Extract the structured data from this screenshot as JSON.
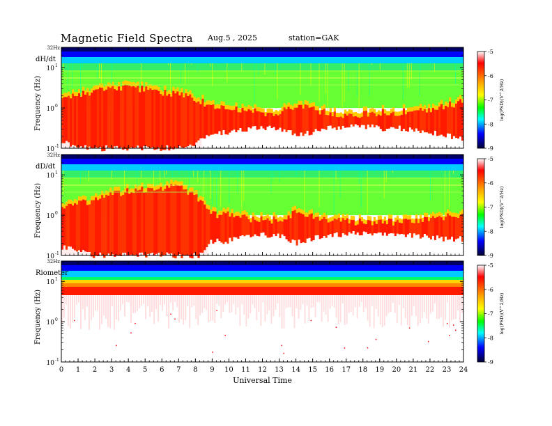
{
  "header": {
    "title": "Magnetic  Field  Spectra",
    "date": "Aug.5  , 2025",
    "station": "station=GAK"
  },
  "chart_data": [
    {
      "type": "heatmap",
      "panel_label": "dH/dt",
      "ylabel": "Frequency  (Hz)",
      "y_scale": "log",
      "ylim": [
        0.1,
        32
      ],
      "y_ticks": [
        {
          "value": 32,
          "label": "32Hz"
        },
        {
          "value": 10,
          "label": "10",
          "exp": "1"
        },
        {
          "value": 1,
          "label": "10",
          "exp": "0"
        },
        {
          "value": 0.1,
          "label": "10",
          "exp": "-1"
        }
      ],
      "xlim": [
        0,
        24
      ],
      "colorbar": {
        "label": "log(PSD)(V^2/Hz)",
        "range": [
          -9,
          -5
        ],
        "ticks": [
          "-5",
          "-6",
          "-7",
          "-8",
          "-9"
        ]
      },
      "profile": [
        [
          0,
          0.55
        ],
        [
          1,
          0.7
        ],
        [
          2,
          0.8
        ],
        [
          3,
          0.9
        ],
        [
          4,
          0.9
        ],
        [
          5,
          0.85
        ],
        [
          6,
          0.75
        ],
        [
          7,
          0.7
        ],
        [
          8,
          0.6
        ],
        [
          9,
          0.35
        ],
        [
          10,
          0.3
        ],
        [
          11,
          0.25
        ],
        [
          12,
          0.2
        ],
        [
          13,
          0.2
        ],
        [
          14,
          0.4
        ],
        [
          15,
          0.3
        ],
        [
          16,
          0.2
        ],
        [
          17,
          0.15
        ],
        [
          18,
          0.15
        ],
        [
          19,
          0.2
        ],
        [
          20,
          0.2
        ],
        [
          21,
          0.25
        ],
        [
          22,
          0.3
        ],
        [
          23,
          0.4
        ],
        [
          24,
          0.5
        ]
      ]
    },
    {
      "type": "heatmap",
      "panel_label": "dD/dt",
      "ylabel": "Frequency  (Hz)",
      "y_scale": "log",
      "ylim": [
        0.1,
        32
      ],
      "y_ticks": [
        {
          "value": 32,
          "label": "32Hz"
        },
        {
          "value": 10,
          "label": "10",
          "exp": "1"
        },
        {
          "value": 1,
          "label": "10",
          "exp": "0"
        },
        {
          "value": 0.1,
          "label": "10",
          "exp": "-1"
        }
      ],
      "xlim": [
        0,
        24
      ],
      "colorbar": {
        "label": "log(PSD)(V^2/Hz)",
        "range": [
          -9,
          -5
        ],
        "ticks": [
          "-5",
          "-6",
          "-7",
          "-8",
          "-9"
        ]
      },
      "profile": [
        [
          0,
          0.5
        ],
        [
          1,
          0.65
        ],
        [
          2,
          0.75
        ],
        [
          3,
          0.9
        ],
        [
          4,
          1.0
        ],
        [
          5,
          1.05
        ],
        [
          6,
          1.1
        ],
        [
          7,
          1.1
        ],
        [
          8,
          0.9
        ],
        [
          9,
          0.35
        ],
        [
          10,
          0.35
        ],
        [
          11,
          0.25
        ],
        [
          12,
          0.2
        ],
        [
          13,
          0.2
        ],
        [
          14,
          0.4
        ],
        [
          15,
          0.3
        ],
        [
          16,
          0.2
        ],
        [
          17,
          0.15
        ],
        [
          18,
          0.15
        ],
        [
          19,
          0.15
        ],
        [
          20,
          0.15
        ],
        [
          21,
          0.2
        ],
        [
          22,
          0.25
        ],
        [
          23,
          0.3
        ],
        [
          24,
          0.3
        ]
      ]
    },
    {
      "type": "heatmap",
      "panel_label": "Riometer",
      "ylabel": "Frequency  (Hz)",
      "y_scale": "log",
      "ylim": [
        0.1,
        32
      ],
      "y_ticks": [
        {
          "value": 32,
          "label": "32Hz"
        },
        {
          "value": 10,
          "label": "10",
          "exp": "1"
        },
        {
          "value": 1,
          "label": "10",
          "exp": "0"
        },
        {
          "value": 0.1,
          "label": "10",
          "exp": "-1"
        }
      ],
      "xlim": [
        0,
        24
      ],
      "xlabel": "Universal Time",
      "x_ticks": [
        "0",
        "1",
        "2",
        "3",
        "4",
        "5",
        "6",
        "7",
        "8",
        "9",
        "10",
        "11",
        "12",
        "13",
        "14",
        "15",
        "16",
        "17",
        "18",
        "19",
        "20",
        "21",
        "22",
        "23",
        "24"
      ],
      "colorbar": {
        "label": "log(PSD)(V^2/Hz)",
        "range": [
          -9,
          -5
        ],
        "ticks": [
          "-5",
          "-6",
          "-7",
          "-8",
          "-9"
        ]
      },
      "profile": [
        [
          0,
          0.0
        ],
        [
          24,
          0.0
        ]
      ]
    }
  ],
  "colors": {
    "colormap": [
      "#ffffff",
      "#ff0000",
      "#ffa500",
      "#ffff00",
      "#00ff00",
      "#00ffff",
      "#0000ff",
      "#000033"
    ]
  }
}
